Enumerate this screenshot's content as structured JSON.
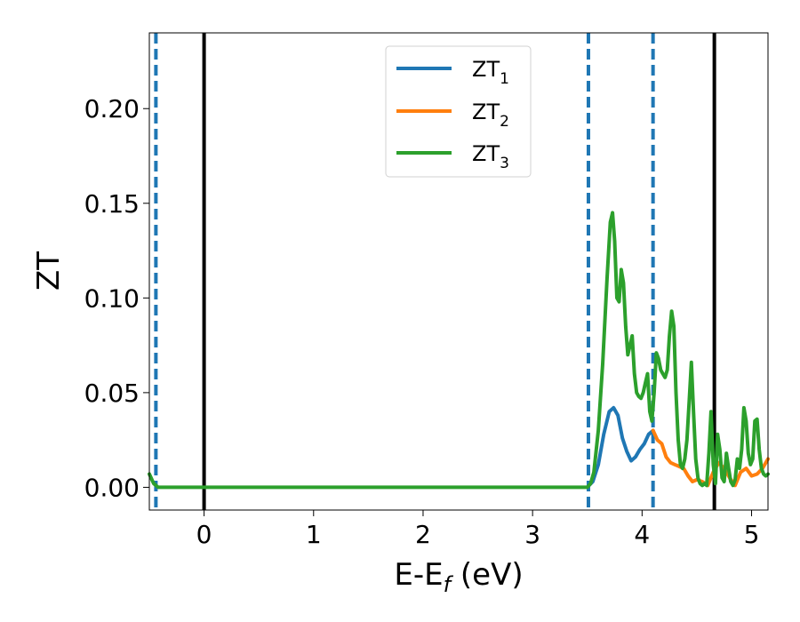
{
  "chart_data": {
    "type": "line",
    "xlabel": "E-E_f (eV)",
    "xlabel_main": "E-E",
    "xlabel_sub": "f",
    "xlabel_tail": " (eV)",
    "ylabel": "ZT",
    "xlim": [
      -0.5,
      5.15
    ],
    "ylim": [
      -0.012,
      0.24
    ],
    "xticks": [
      0,
      1,
      2,
      3,
      4,
      5
    ],
    "xtick_labels": [
      "0",
      "1",
      "2",
      "3",
      "4",
      "5"
    ],
    "yticks": [
      0.0,
      0.05,
      0.1,
      0.15,
      0.2
    ],
    "ytick_labels": [
      "0.00",
      "0.05",
      "0.10",
      "0.15",
      "0.20"
    ],
    "grid": false,
    "legend_position": "upper center",
    "vlines": [
      {
        "x": 0.0,
        "style": "solid",
        "color": "#000000"
      },
      {
        "x": 4.66,
        "style": "solid",
        "color": "#000000"
      },
      {
        "x": -0.44,
        "style": "dashed",
        "color": "#1f77b4"
      },
      {
        "x": 3.51,
        "style": "dashed",
        "color": "#1f77b4"
      },
      {
        "x": 4.1,
        "style": "dashed",
        "color": "#1f77b4"
      }
    ],
    "series": [
      {
        "name": "ZT_1",
        "name_main": "ZT",
        "name_sub": "1",
        "color": "#1f77b4",
        "x": [
          3.5,
          3.55,
          3.6,
          3.65,
          3.7,
          3.74,
          3.78,
          3.82,
          3.86,
          3.9,
          3.94,
          3.98,
          4.02,
          4.06,
          4.1
        ],
        "y": [
          0.0,
          0.003,
          0.012,
          0.028,
          0.04,
          0.042,
          0.038,
          0.026,
          0.019,
          0.014,
          0.016,
          0.02,
          0.023,
          0.028,
          0.03
        ]
      },
      {
        "name": "ZT_2",
        "name_main": "ZT",
        "name_sub": "2",
        "color": "#ff7f0e",
        "x": [
          4.1,
          4.14,
          4.18,
          4.22,
          4.26,
          4.3,
          4.34,
          4.38,
          4.42,
          4.46,
          4.5,
          4.55,
          4.6,
          4.65,
          4.7,
          4.75,
          4.8,
          4.85,
          4.9,
          4.95,
          5.0,
          5.05,
          5.1,
          5.15
        ],
        "y": [
          0.03,
          0.025,
          0.023,
          0.016,
          0.013,
          0.012,
          0.011,
          0.01,
          0.006,
          0.003,
          0.004,
          0.003,
          0.001,
          0.008,
          0.013,
          0.01,
          0.005,
          0.001,
          0.008,
          0.01,
          0.006,
          0.007,
          0.01,
          0.015
        ]
      },
      {
        "name": "ZT_3",
        "name_main": "ZT",
        "name_sub": "3",
        "color": "#2ca02c",
        "x": [
          -0.5,
          -0.46,
          -0.42,
          -0.35,
          0.0,
          1.0,
          2.0,
          3.0,
          3.5,
          3.53,
          3.56,
          3.6,
          3.64,
          3.68,
          3.71,
          3.73,
          3.75,
          3.77,
          3.79,
          3.81,
          3.83,
          3.85,
          3.87,
          3.89,
          3.91,
          3.93,
          3.95,
          3.97,
          3.99,
          4.01,
          4.03,
          4.05,
          4.07,
          4.09,
          4.11,
          4.13,
          4.15,
          4.17,
          4.19,
          4.21,
          4.23,
          4.25,
          4.27,
          4.29,
          4.31,
          4.33,
          4.35,
          4.37,
          4.39,
          4.41,
          4.43,
          4.45,
          4.47,
          4.49,
          4.51,
          4.53,
          4.55,
          4.57,
          4.59,
          4.61,
          4.63,
          4.65,
          4.67,
          4.69,
          4.71,
          4.73,
          4.75,
          4.77,
          4.79,
          4.81,
          4.83,
          4.85,
          4.87,
          4.89,
          4.91,
          4.93,
          4.95,
          4.97,
          4.99,
          5.01,
          5.03,
          5.05,
          5.07,
          5.09,
          5.11,
          5.13,
          5.15
        ],
        "y": [
          0.007,
          0.002,
          0.0,
          0.0,
          0.0,
          0.0,
          0.0,
          0.0,
          0.0,
          0.002,
          0.008,
          0.03,
          0.065,
          0.11,
          0.14,
          0.145,
          0.13,
          0.1,
          0.098,
          0.115,
          0.108,
          0.085,
          0.07,
          0.075,
          0.08,
          0.06,
          0.05,
          0.048,
          0.047,
          0.05,
          0.055,
          0.06,
          0.04,
          0.035,
          0.05,
          0.071,
          0.068,
          0.062,
          0.06,
          0.058,
          0.062,
          0.08,
          0.093,
          0.085,
          0.05,
          0.025,
          0.012,
          0.01,
          0.015,
          0.025,
          0.045,
          0.066,
          0.04,
          0.015,
          0.005,
          0.002,
          0.001,
          0.002,
          0.001,
          0.018,
          0.04,
          0.012,
          0.002,
          0.028,
          0.02,
          0.005,
          0.003,
          0.018,
          0.01,
          0.003,
          0.001,
          0.004,
          0.015,
          0.01,
          0.02,
          0.042,
          0.035,
          0.018,
          0.012,
          0.015,
          0.035,
          0.036,
          0.02,
          0.01,
          0.007,
          0.006,
          0.007
        ]
      }
    ]
  }
}
